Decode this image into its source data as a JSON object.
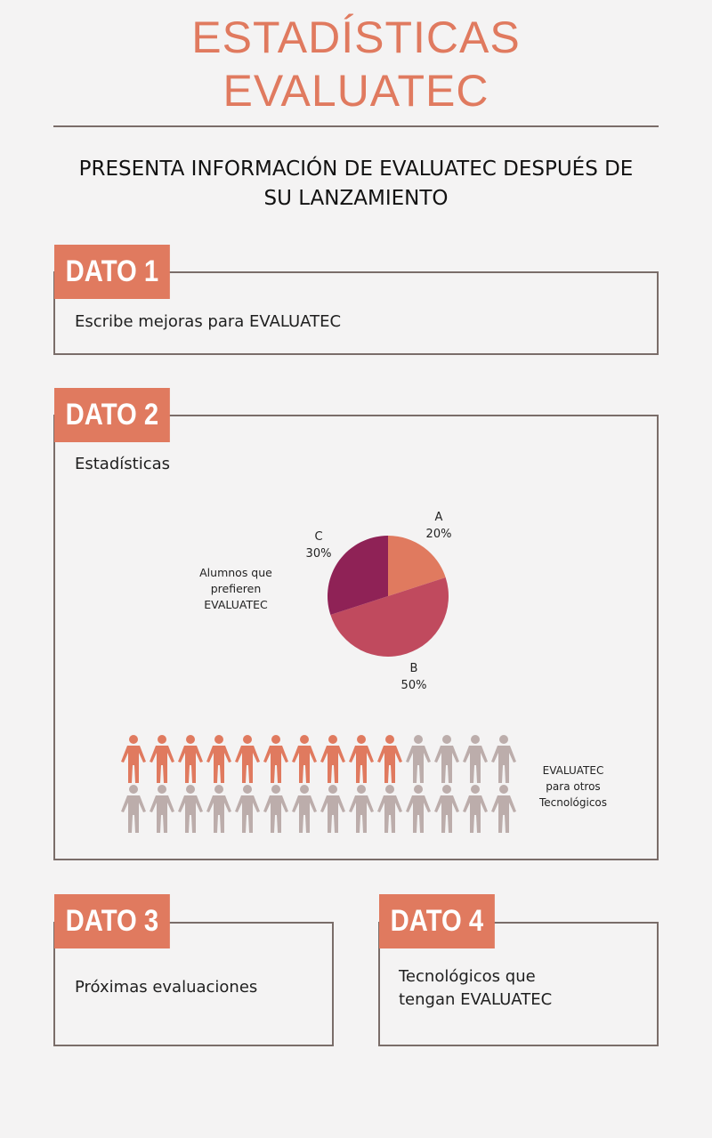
{
  "header": {
    "title_line1": "ESTADÍSTICAS",
    "title_line2": "EVALUATEC",
    "subtitle_line1": "PRESENTA INFORMACIÓN DE EVALUATEC DESPUÉS DE",
    "subtitle_line2": "SU LANZAMIENTO"
  },
  "cards": [
    {
      "tag": "DATO 1",
      "text": "Escribe mejoras para EVALUATEC"
    },
    {
      "tag": "DATO 2",
      "text": "Estadísticas"
    },
    {
      "tag": "DATO 3",
      "text": "Próximas evaluaciones"
    },
    {
      "tag": "DATO 4",
      "text_line1": "Tecnológicos que",
      "text_line2": "tengan EVALUATEC"
    }
  ],
  "colors": {
    "accent": "#e07a5f",
    "slice_a": "#e07a5f",
    "slice_b": "#c04a5e",
    "slice_c": "#8f2256",
    "person_highlight": "#e07a5f",
    "person_muted": "#bcadab",
    "border": "#7a6d69"
  },
  "chart_data": [
    {
      "type": "pie",
      "title": "Alumnos que prefieren EVALUATEC",
      "title_lines": [
        "Alumnos que",
        "prefieren",
        "EVALUATEC"
      ],
      "slices": [
        {
          "name": "A",
          "value": 20,
          "label": "20%",
          "color": "#e07a5f"
        },
        {
          "name": "B",
          "value": 50,
          "label": "50%",
          "color": "#c04a5e"
        },
        {
          "name": "C",
          "value": 30,
          "label": "30%",
          "color": "#8f2256"
        }
      ]
    },
    {
      "type": "pictogram",
      "caption": "EVALUATEC para otros Tecnológicos",
      "caption_lines": [
        "EVALUATEC",
        "para otros",
        "Tecnológicos"
      ],
      "rows": 2,
      "columns": 14,
      "total": 28,
      "highlighted": 10,
      "icon": "person-icon"
    }
  ]
}
